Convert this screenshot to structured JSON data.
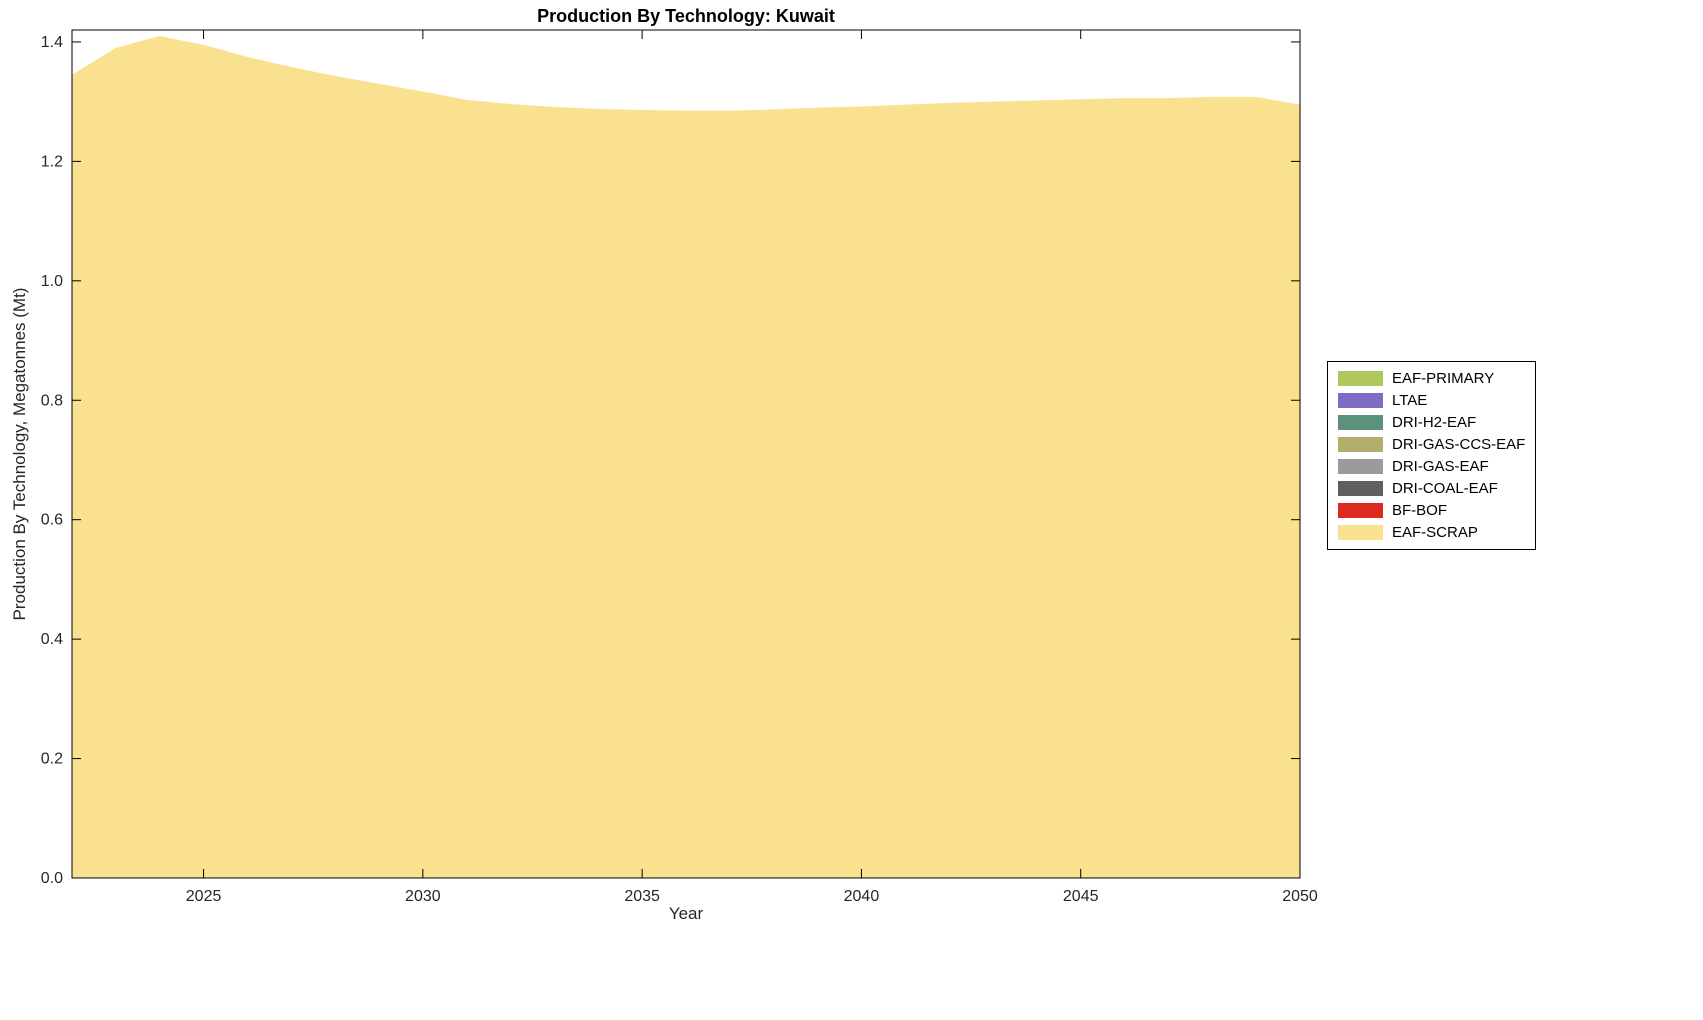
{
  "chart_data": {
    "type": "area",
    "stacked": true,
    "title": "Production By Technology: Kuwait",
    "xlabel": "Year",
    "ylabel": "Production By Technology, Megatonnes (Mt)",
    "x": [
      2022,
      2023,
      2024,
      2025,
      2026,
      2027,
      2028,
      2029,
      2030,
      2031,
      2032,
      2033,
      2034,
      2035,
      2036,
      2037,
      2038,
      2039,
      2040,
      2041,
      2042,
      2043,
      2044,
      2045,
      2046,
      2047,
      2048,
      2049,
      2050
    ],
    "xlim": [
      2022,
      2050
    ],
    "ylim": [
      0,
      1.42
    ],
    "xticks": [
      2025,
      2030,
      2035,
      2040,
      2045,
      2050
    ],
    "yticks": [
      0.0,
      0.2,
      0.4,
      0.6,
      0.8,
      1.0,
      1.2,
      1.4
    ],
    "grid": false,
    "legend_position": "right-outside",
    "axis_color": "#000000",
    "series": [
      {
        "name": "EAF-PRIMARY",
        "color": "#aec75b",
        "values": [
          0,
          0,
          0,
          0,
          0,
          0,
          0,
          0,
          0,
          0,
          0,
          0,
          0,
          0,
          0,
          0,
          0,
          0,
          0,
          0,
          0,
          0,
          0,
          0,
          0,
          0,
          0,
          0,
          0
        ]
      },
      {
        "name": "LTAE",
        "color": "#7e6bc4",
        "values": [
          0,
          0,
          0,
          0,
          0,
          0,
          0,
          0,
          0,
          0,
          0,
          0,
          0,
          0,
          0,
          0,
          0,
          0,
          0,
          0,
          0,
          0,
          0,
          0,
          0,
          0,
          0,
          0,
          0
        ]
      },
      {
        "name": "DRI-H2-EAF",
        "color": "#5b9279",
        "values": [
          0,
          0,
          0,
          0,
          0,
          0,
          0,
          0,
          0,
          0,
          0,
          0,
          0,
          0,
          0,
          0,
          0,
          0,
          0,
          0,
          0,
          0,
          0,
          0,
          0,
          0,
          0,
          0,
          0
        ]
      },
      {
        "name": "DRI-GAS-CCS-EAF",
        "color": "#b5ad6b",
        "values": [
          0,
          0,
          0,
          0,
          0,
          0,
          0,
          0,
          0,
          0,
          0,
          0,
          0,
          0,
          0,
          0,
          0,
          0,
          0,
          0,
          0,
          0,
          0,
          0,
          0,
          0,
          0,
          0,
          0
        ]
      },
      {
        "name": "DRI-GAS-EAF",
        "color": "#9b9b9b",
        "values": [
          0,
          0,
          0,
          0,
          0,
          0,
          0,
          0,
          0,
          0,
          0,
          0,
          0,
          0,
          0,
          0,
          0,
          0,
          0,
          0,
          0,
          0,
          0,
          0,
          0,
          0,
          0,
          0,
          0
        ]
      },
      {
        "name": "DRI-COAL-EAF",
        "color": "#5f5f5f",
        "values": [
          0,
          0,
          0,
          0,
          0,
          0,
          0,
          0,
          0,
          0,
          0,
          0,
          0,
          0,
          0,
          0,
          0,
          0,
          0,
          0,
          0,
          0,
          0,
          0,
          0,
          0,
          0,
          0,
          0
        ]
      },
      {
        "name": "BF-BOF",
        "color": "#dd2a21",
        "values": [
          0,
          0,
          0,
          0,
          0,
          0,
          0,
          0,
          0,
          0,
          0,
          0,
          0,
          0,
          0,
          0,
          0,
          0,
          0,
          0,
          0,
          0,
          0,
          0,
          0,
          0,
          0,
          0,
          0
        ]
      },
      {
        "name": "EAF-SCRAP",
        "color": "#fae190",
        "values": [
          1.345,
          1.39,
          1.41,
          1.395,
          1.375,
          1.358,
          1.343,
          1.33,
          1.317,
          1.303,
          1.296,
          1.291,
          1.288,
          1.286,
          1.285,
          1.285,
          1.287,
          1.29,
          1.292,
          1.295,
          1.298,
          1.3,
          1.302,
          1.304,
          1.306,
          1.306,
          1.308,
          1.308,
          1.295
        ]
      }
    ]
  }
}
